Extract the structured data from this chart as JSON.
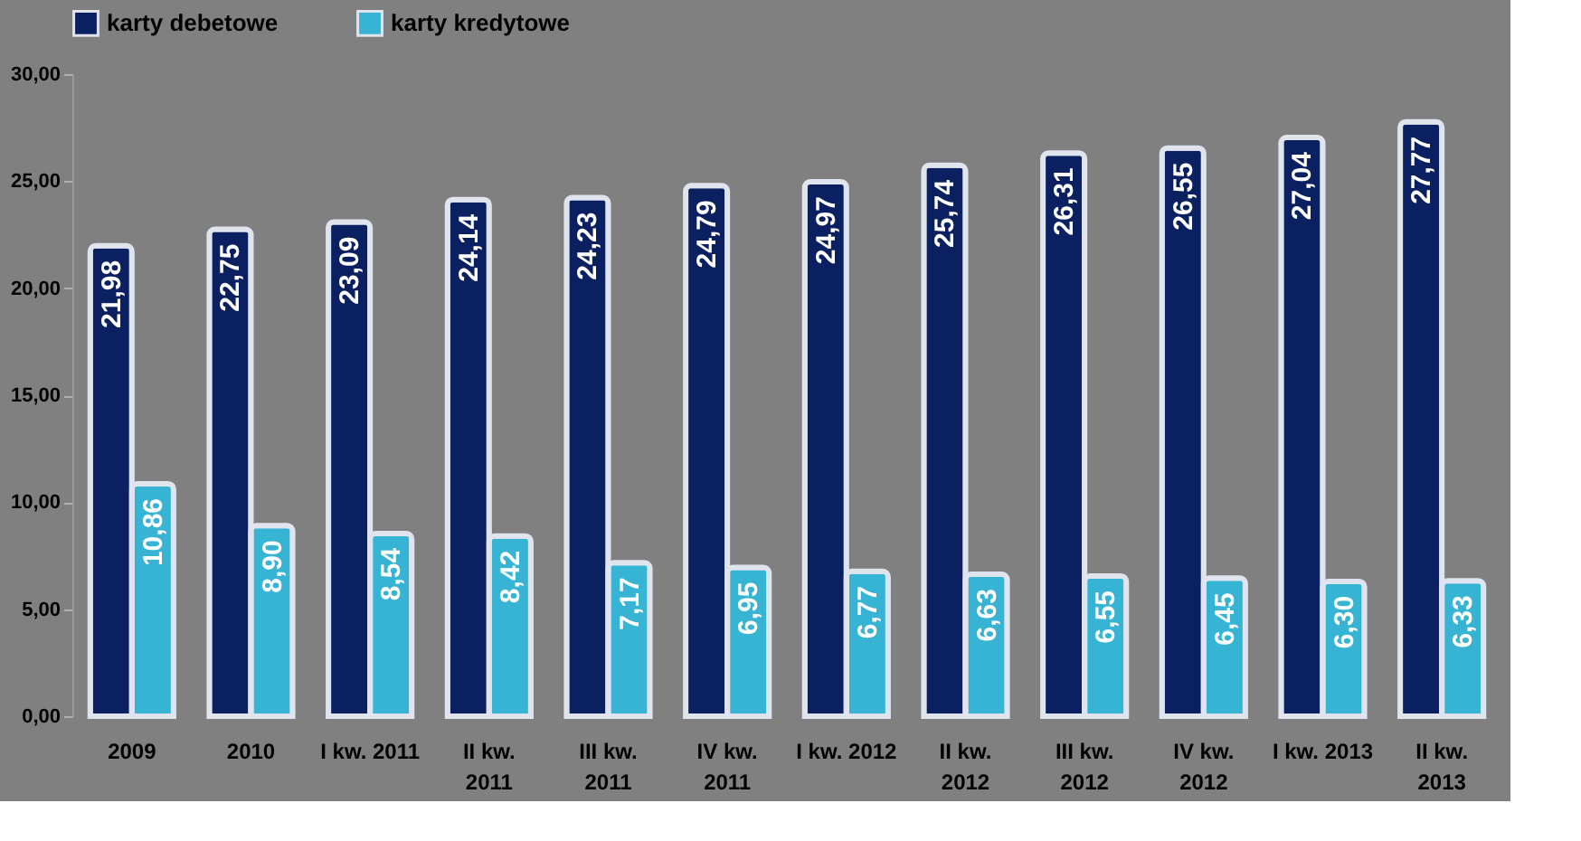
{
  "chart_data": {
    "type": "bar",
    "categories": [
      "2009",
      "2010",
      "I kw. 2011",
      "II kw. 2011",
      "III kw. 2011",
      "IV kw. 2011",
      "I kw. 2012",
      "II kw. 2012",
      "III kw. 2012",
      "IV kw. 2012",
      "I kw. 2013",
      "II kw. 2013"
    ],
    "series": [
      {
        "name": "karty debetowe",
        "color": "#0b2060",
        "values": [
          21.98,
          22.75,
          23.09,
          24.14,
          24.23,
          24.79,
          24.97,
          25.74,
          26.31,
          26.55,
          27.04,
          27.77
        ],
        "value_labels": [
          "21,98",
          "22,75",
          "23,09",
          "24,14",
          "24,23",
          "24,79",
          "24,97",
          "25,74",
          "26,31",
          "26,55",
          "27,04",
          "27,77"
        ]
      },
      {
        "name": "karty kredytowe",
        "color": "#37b4d4",
        "values": [
          10.86,
          8.9,
          8.54,
          8.42,
          7.17,
          6.95,
          6.77,
          6.63,
          6.55,
          6.45,
          6.3,
          6.33
        ],
        "value_labels": [
          "10,86",
          "8,90",
          "8,54",
          "8,42",
          "7,17",
          "6,95",
          "6,77",
          "6,63",
          "6,55",
          "6,45",
          "6,30",
          "6,33"
        ]
      }
    ],
    "ylim": [
      0,
      30
    ],
    "yticks": [
      {
        "value": 0,
        "label": "0,00"
      },
      {
        "value": 5,
        "label": "5,00"
      },
      {
        "value": 10,
        "label": "10,00"
      },
      {
        "value": 15,
        "label": "15,00"
      },
      {
        "value": 20,
        "label": "20,00"
      },
      {
        "value": 25,
        "label": "25,00"
      },
      {
        "value": 30,
        "label": "30,00"
      }
    ],
    "grid": false,
    "legend": "top"
  }
}
